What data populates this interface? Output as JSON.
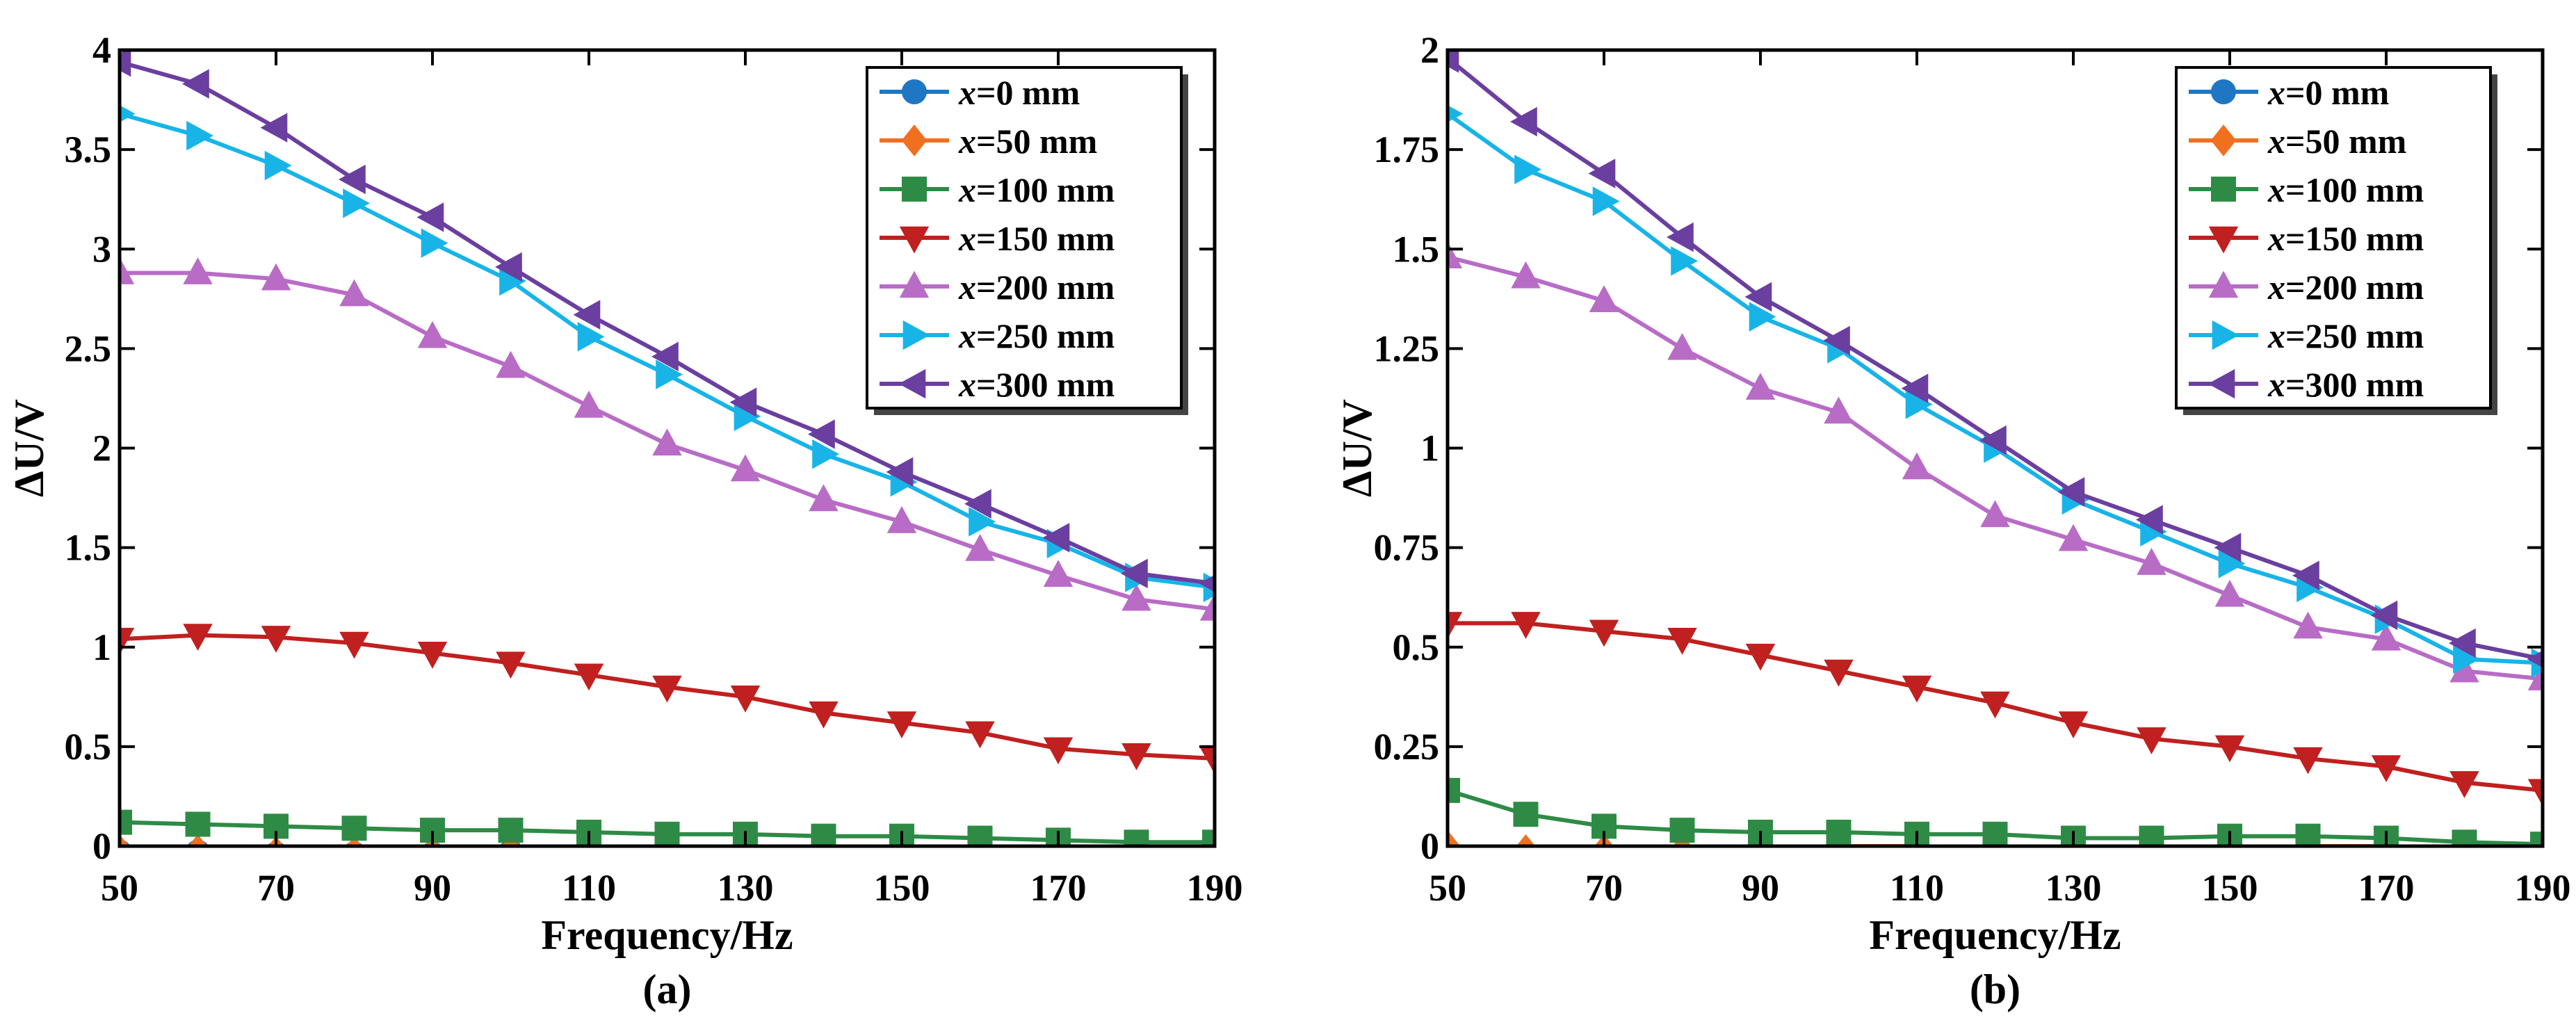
{
  "colors": {
    "x0": "#1f77c4",
    "x50": "#f07020",
    "x100": "#2e8b46",
    "x150": "#c0201f",
    "x200": "#b86cc6",
    "x250": "#18b4e8",
    "x300": "#6a3fa0"
  },
  "chart_data": [
    {
      "type": "line",
      "panel_label": "(a)",
      "xlabel": "Frequency/Hz",
      "ylabel": "ΔU/V",
      "xlim": [
        50,
        190
      ],
      "ylim": [
        0,
        4
      ],
      "xticks": [
        "50",
        "70",
        "90",
        "110",
        "130",
        "150",
        "170",
        "190"
      ],
      "yticks": [
        "0",
        "0.5",
        "1",
        "1.5",
        "2",
        "2.5",
        "3",
        "3.5",
        "4"
      ],
      "grid": false,
      "legend_position": "top-right",
      "x": [
        50,
        60,
        70,
        80,
        90,
        100,
        110,
        120,
        130,
        140,
        150,
        160,
        170,
        180,
        190
      ],
      "series": [
        {
          "name": "x=0 mm",
          "prefix": "x",
          "suffix": "=0 mm",
          "marker": "circle",
          "color_key": "x0",
          "values": [
            -0.03,
            -0.03,
            -0.04,
            -0.04,
            -0.04,
            -0.03,
            -0.03,
            -0.03,
            -0.04,
            -0.04,
            -0.04,
            -0.04,
            -0.04,
            -0.04,
            -0.04
          ]
        },
        {
          "name": "x=50 mm",
          "prefix": "x",
          "suffix": "=50 mm",
          "marker": "diamond",
          "color_key": "x50",
          "values": [
            -0.02,
            -0.02,
            -0.03,
            -0.03,
            -0.03,
            -0.02,
            -0.01,
            -0.02,
            -0.03,
            -0.03,
            -0.03,
            -0.02,
            -0.02,
            -0.02,
            -0.02
          ]
        },
        {
          "name": "x=100 mm",
          "prefix": "x",
          "suffix": "=100 mm",
          "marker": "square",
          "color_key": "x100",
          "values": [
            0.12,
            0.11,
            0.1,
            0.09,
            0.08,
            0.08,
            0.07,
            0.06,
            0.06,
            0.05,
            0.05,
            0.04,
            0.03,
            0.02,
            0.02
          ]
        },
        {
          "name": "x=150 mm",
          "prefix": "x",
          "suffix": "=150 mm",
          "marker": "triangle-down",
          "color_key": "x150",
          "values": [
            1.04,
            1.06,
            1.05,
            1.02,
            0.97,
            0.92,
            0.86,
            0.8,
            0.75,
            0.67,
            0.62,
            0.57,
            0.49,
            0.46,
            0.44
          ]
        },
        {
          "name": "x=200 mm",
          "prefix": "x",
          "suffix": "=200 mm",
          "marker": "triangle-up",
          "color_key": "x200",
          "values": [
            2.88,
            2.88,
            2.85,
            2.77,
            2.56,
            2.41,
            2.21,
            2.02,
            1.89,
            1.74,
            1.63,
            1.49,
            1.36,
            1.24,
            1.19
          ]
        },
        {
          "name": "x=250 mm",
          "prefix": "x",
          "suffix": "=250 mm",
          "marker": "triangle-right",
          "color_key": "x250",
          "values": [
            3.68,
            3.57,
            3.42,
            3.23,
            3.03,
            2.84,
            2.56,
            2.37,
            2.16,
            1.97,
            1.83,
            1.63,
            1.52,
            1.35,
            1.3
          ]
        },
        {
          "name": "x=300 mm",
          "prefix": "x",
          "suffix": "=300 mm",
          "marker": "triangle-left",
          "color_key": "x300",
          "values": [
            3.94,
            3.83,
            3.61,
            3.35,
            3.16,
            2.91,
            2.67,
            2.46,
            2.23,
            2.07,
            1.88,
            1.72,
            1.55,
            1.37,
            1.32
          ]
        }
      ]
    },
    {
      "type": "line",
      "panel_label": "(b)",
      "xlabel": "Frequency/Hz",
      "ylabel": "ΔU/V",
      "xlim": [
        50,
        190
      ],
      "ylim": [
        0,
        2
      ],
      "xticks": [
        "50",
        "70",
        "90",
        "110",
        "130",
        "150",
        "170",
        "190"
      ],
      "yticks": [
        "0",
        "0.25",
        "0.5",
        "0.75",
        "1",
        "1.25",
        "1.5",
        "1.75",
        "2"
      ],
      "grid": false,
      "legend_position": "top-right",
      "x": [
        50,
        60,
        70,
        80,
        90,
        100,
        110,
        120,
        130,
        140,
        150,
        160,
        170,
        180,
        190
      ],
      "series": [
        {
          "name": "x=0 mm",
          "prefix": "x",
          "suffix": "=0 mm",
          "marker": "circle",
          "color_key": "x0",
          "values": [
            -0.02,
            -0.02,
            -0.02,
            -0.02,
            -0.02,
            -0.02,
            -0.02,
            -0.02,
            -0.02,
            -0.02,
            -0.02,
            -0.02,
            -0.02,
            -0.02,
            -0.02
          ]
        },
        {
          "name": "x=50 mm",
          "prefix": "x",
          "suffix": "=50 mm",
          "marker": "diamond",
          "color_key": "x50",
          "values": [
            0.0,
            -0.01,
            -0.01,
            -0.01,
            -0.01,
            0.0,
            0.0,
            -0.01,
            -0.01,
            -0.01,
            -0.01,
            0.0,
            0.0,
            -0.01,
            -0.01
          ]
        },
        {
          "name": "x=100 mm",
          "prefix": "x",
          "suffix": "=100 mm",
          "marker": "square",
          "color_key": "x100",
          "values": [
            0.14,
            0.08,
            0.05,
            0.04,
            0.035,
            0.035,
            0.03,
            0.03,
            0.02,
            0.02,
            0.025,
            0.025,
            0.02,
            0.01,
            0.005
          ]
        },
        {
          "name": "x=150 mm",
          "prefix": "x",
          "suffix": "=150 mm",
          "marker": "triangle-down",
          "color_key": "x150",
          "values": [
            0.56,
            0.56,
            0.54,
            0.52,
            0.48,
            0.44,
            0.4,
            0.36,
            0.31,
            0.27,
            0.25,
            0.22,
            0.2,
            0.16,
            0.14
          ]
        },
        {
          "name": "x=200 mm",
          "prefix": "x",
          "suffix": "=200 mm",
          "marker": "triangle-up",
          "color_key": "x200",
          "values": [
            1.48,
            1.43,
            1.37,
            1.25,
            1.15,
            1.09,
            0.95,
            0.83,
            0.77,
            0.71,
            0.63,
            0.55,
            0.52,
            0.44,
            0.42
          ]
        },
        {
          "name": "x=250 mm",
          "prefix": "x",
          "suffix": "=250 mm",
          "marker": "triangle-right",
          "color_key": "x250",
          "values": [
            1.84,
            1.7,
            1.62,
            1.47,
            1.33,
            1.25,
            1.11,
            1.0,
            0.87,
            0.79,
            0.71,
            0.65,
            0.57,
            0.47,
            0.46
          ]
        },
        {
          "name": "x=300 mm",
          "prefix": "x",
          "suffix": "=300 mm",
          "marker": "triangle-left",
          "color_key": "x300",
          "values": [
            1.98,
            1.82,
            1.69,
            1.53,
            1.38,
            1.27,
            1.15,
            1.02,
            0.89,
            0.82,
            0.75,
            0.68,
            0.58,
            0.51,
            0.47
          ]
        }
      ]
    }
  ]
}
